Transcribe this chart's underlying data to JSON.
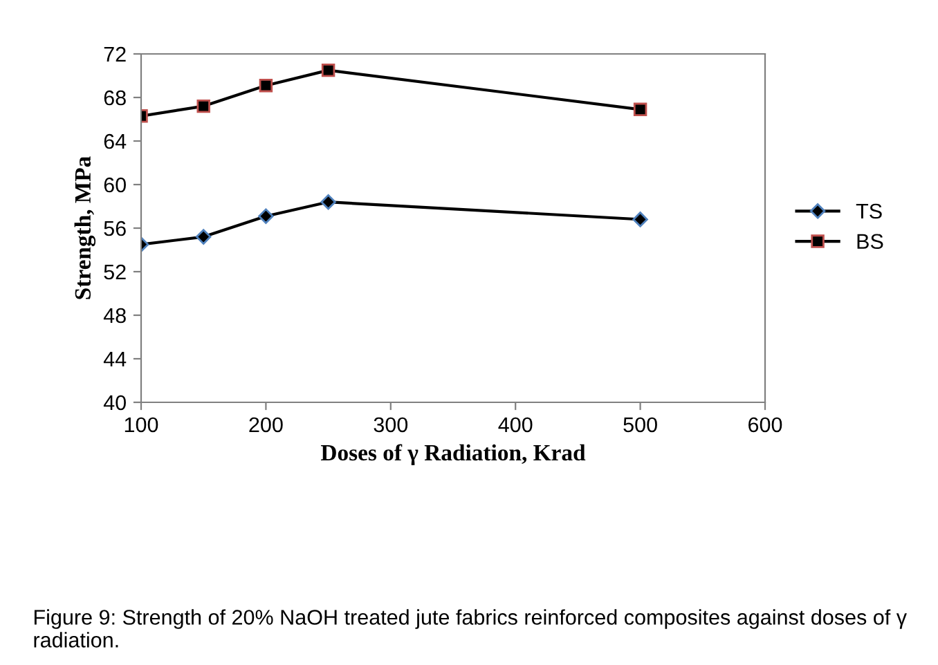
{
  "chart_data": {
    "type": "line",
    "xlabel": "Doses of γ Radiation, Krad",
    "ylabel": "Strength, MPa",
    "x": [
      100,
      150,
      200,
      250,
      500
    ],
    "series": [
      {
        "name": "TS",
        "color": "#000000",
        "marker": "diamond",
        "values": [
          54.5,
          55.2,
          57.1,
          58.4,
          56.8
        ]
      },
      {
        "name": "BS",
        "color": "#000000",
        "marker": "square",
        "values": [
          66.3,
          67.2,
          69.1,
          70.5,
          66.9
        ]
      }
    ],
    "xlim": [
      100,
      600
    ],
    "xticks": [
      100,
      200,
      300,
      400,
      500,
      600
    ],
    "ylim": [
      40,
      72
    ],
    "yticks": [
      40,
      44,
      48,
      52,
      56,
      60,
      64,
      68,
      72
    ],
    "grid": false,
    "legend": "right",
    "line_style": "solid",
    "annotations": [
      "Figure 9: Strength of 20% NaOH treated jute fabrics reinforced composites against doses of γ radiation."
    ]
  }
}
